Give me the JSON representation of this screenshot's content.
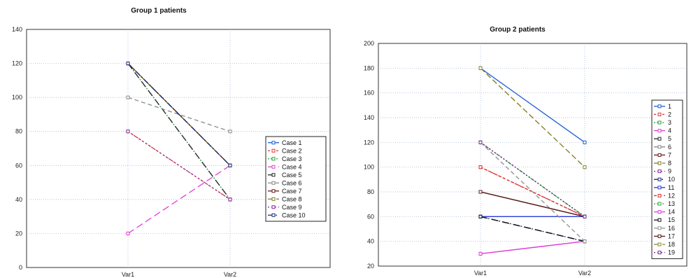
{
  "chart_data": [
    {
      "type": "line",
      "title": "Group 1 patients",
      "xlabel": "",
      "ylabel": "",
      "categories": [
        "Var1",
        "Var2"
      ],
      "ylim": [
        0,
        140
      ],
      "yticks": [
        0,
        20,
        40,
        60,
        80,
        100,
        120,
        140
      ],
      "grid": true,
      "legend_position": "right",
      "series": [
        {
          "name": "Case 1",
          "values": [
            120,
            60
          ],
          "color": "#1f5fd6",
          "dash": ""
        },
        {
          "name": "Case 2",
          "values": [
            80,
            40
          ],
          "color": "#e0342a",
          "dash": "3,3"
        },
        {
          "name": "Case 3",
          "values": [
            120,
            40
          ],
          "color": "#2e9e3c",
          "dash": "2,2"
        },
        {
          "name": "Case 4",
          "values": [
            20,
            60
          ],
          "color": "#e23fd0",
          "dash": "10,5"
        },
        {
          "name": "Case 5",
          "values": [
            120,
            40
          ],
          "color": "#222222",
          "dash": "10,6"
        },
        {
          "name": "Case 6",
          "values": [
            100,
            80
          ],
          "color": "#8a8a8a",
          "dash": "6,4"
        },
        {
          "name": "Case 7",
          "values": [
            120,
            60
          ],
          "color": "#6a1b1b",
          "dash": ""
        },
        {
          "name": "Case 8",
          "values": [
            120,
            60
          ],
          "color": "#7a7a2a",
          "dash": "8,4"
        },
        {
          "name": "Case 9",
          "values": [
            80,
            40
          ],
          "color": "#8a2a9a",
          "dash": "2,3"
        },
        {
          "name": "Case 10",
          "values": [
            120,
            60
          ],
          "color": "#1a2a6a",
          "dash": "8,3,2,3"
        }
      ]
    },
    {
      "type": "line",
      "title": "Group 2 patients",
      "xlabel": "",
      "ylabel": "",
      "categories": [
        "Var1",
        "Var2"
      ],
      "ylim": [
        20,
        200
      ],
      "yticks": [
        20,
        40,
        60,
        80,
        100,
        120,
        140,
        160,
        180,
        200
      ],
      "grid": true,
      "legend_position": "right",
      "series": [
        {
          "name": "1",
          "values": [
            180,
            120
          ],
          "color": "#1f5fd6",
          "dash": ""
        },
        {
          "name": "2",
          "values": [
            100,
            60
          ],
          "color": "#e0342a",
          "dash": "3,3"
        },
        {
          "name": "3",
          "values": [
            120,
            60
          ],
          "color": "#2e9e3c",
          "dash": "2,2"
        },
        {
          "name": "4",
          "values": [
            30,
            40
          ],
          "color": "#e23fd0",
          "dash": ""
        },
        {
          "name": "5",
          "values": [
            60,
            40
          ],
          "color": "#222222",
          "dash": "10,6"
        },
        {
          "name": "6",
          "values": [
            120,
            40
          ],
          "color": "#8a8a8a",
          "dash": "6,4"
        },
        {
          "name": "7",
          "values": [
            80,
            60
          ],
          "color": "#6a1b1b",
          "dash": ""
        },
        {
          "name": "8",
          "values": [
            180,
            100
          ],
          "color": "#7a7a2a",
          "dash": "8,4"
        },
        {
          "name": "9",
          "values": [
            120,
            60
          ],
          "color": "#8a2a9a",
          "dash": "2,3"
        },
        {
          "name": "10",
          "values": [
            60,
            40
          ],
          "color": "#1a2a6a",
          "dash": "8,3,2,3"
        },
        {
          "name": "11",
          "values": [
            60,
            60
          ],
          "color": "#2a3ad6",
          "dash": ""
        },
        {
          "name": "12",
          "values": [
            100,
            60
          ],
          "color": "#d6302a",
          "dash": "4,3"
        },
        {
          "name": "13",
          "values": [
            80,
            60
          ],
          "color": "#3aa04a",
          "dash": "2,2"
        },
        {
          "name": "14",
          "values": [
            30,
            40
          ],
          "color": "#e040d8",
          "dash": ""
        },
        {
          "name": "15",
          "values": [
            60,
            40
          ],
          "color": "#111111",
          "dash": "10,6"
        },
        {
          "name": "16",
          "values": [
            120,
            40
          ],
          "color": "#9a9a9a",
          "dash": "6,4"
        },
        {
          "name": "17",
          "values": [
            80,
            60
          ],
          "color": "#5a1a1a",
          "dash": ""
        },
        {
          "name": "18",
          "values": [
            180,
            100
          ],
          "color": "#8a8a30",
          "dash": "8,4"
        },
        {
          "name": "19",
          "values": [
            120,
            60
          ],
          "color": "#7a2a8a",
          "dash": "2,3"
        }
      ]
    }
  ]
}
